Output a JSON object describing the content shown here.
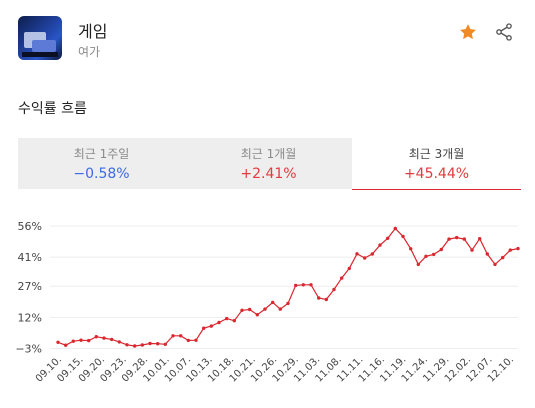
{
  "header": {
    "title": "게임",
    "subtitle": "여가"
  },
  "section": {
    "title": "수익률 흐름"
  },
  "tabs": [
    {
      "label": "최근 1주일",
      "value": "−0.58%",
      "active": false
    },
    {
      "label": "최근 1개월",
      "value": "+2.41%",
      "active": false
    },
    {
      "label": "최근 3개월",
      "value": "+45.44%",
      "active": true
    }
  ],
  "icons": {
    "star": "star-icon",
    "share": "share-icon"
  },
  "colors": {
    "accent": "#e03c3c",
    "negative": "#3a6be0",
    "star": "#f08a24",
    "inactive_tab": "#eeeeee"
  },
  "chart_data": {
    "type": "line",
    "y_ticks": [
      "56%",
      "41%",
      "27%",
      "12%",
      "−3%"
    ],
    "y_tick_values": [
      56,
      41,
      27,
      12,
      -3
    ],
    "x_ticks": [
      "09.10.",
      "09.15.",
      "09.20.",
      "09.23.",
      "09.28.",
      "10.01.",
      "10.07.",
      "10.13.",
      "10.18.",
      "10.21.",
      "10.26.",
      "10.29.",
      "11.03.",
      "11.08.",
      "11.11.",
      "11.16.",
      "11.19.",
      "11.24.",
      "11.29.",
      "12.02.",
      "12.07.",
      "12.10."
    ],
    "ylim": [
      -3,
      60
    ],
    "grid": true,
    "series": [
      {
        "values": [
          0.0,
          -1.4,
          0.5,
          1.0,
          0.8,
          2.7,
          2.0,
          1.4,
          0.2,
          -1.2,
          -1.8,
          -1.3,
          -0.6,
          -0.7,
          -1.0,
          3.1,
          3.1,
          0.9,
          1.0,
          6.8,
          7.8,
          9.5,
          11.4,
          10.4,
          15.4,
          15.8,
          13.3,
          16.0,
          19.2,
          16.0,
          18.7,
          27.4,
          27.7,
          27.7,
          21.3,
          20.6,
          25.4,
          30.9,
          35.6,
          42.6,
          40.6,
          42.5,
          46.8,
          50.1,
          54.8,
          51.0,
          45.0,
          37.5,
          41.4,
          42.3,
          44.7,
          49.7,
          50.4,
          49.7,
          44.4,
          49.9,
          42.5,
          37.5,
          40.8,
          44.4,
          45.1
        ]
      }
    ]
  }
}
